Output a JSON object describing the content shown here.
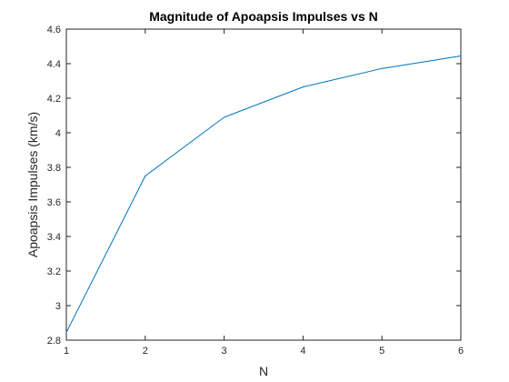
{
  "chart_data": {
    "type": "line",
    "title": "Magnitude of Apoapsis Impulses vs N",
    "xlabel": "N",
    "ylabel": "Apoapsis Impulses (km/s)",
    "xlim": [
      1,
      6
    ],
    "ylim": [
      2.8,
      4.6
    ],
    "xticks": [
      1,
      2,
      3,
      4,
      5,
      6
    ],
    "yticks": [
      2.8,
      3,
      3.2,
      3.4,
      3.6,
      3.8,
      4,
      4.2,
      4.4,
      4.6
    ],
    "grid": false,
    "series": [
      {
        "name": "Apoapsis Impulses",
        "color": "#0072BD",
        "x": [
          1,
          2,
          3,
          4,
          5,
          6
        ],
        "y": [
          2.845,
          3.75,
          4.09,
          4.265,
          4.372,
          4.445
        ]
      }
    ]
  }
}
